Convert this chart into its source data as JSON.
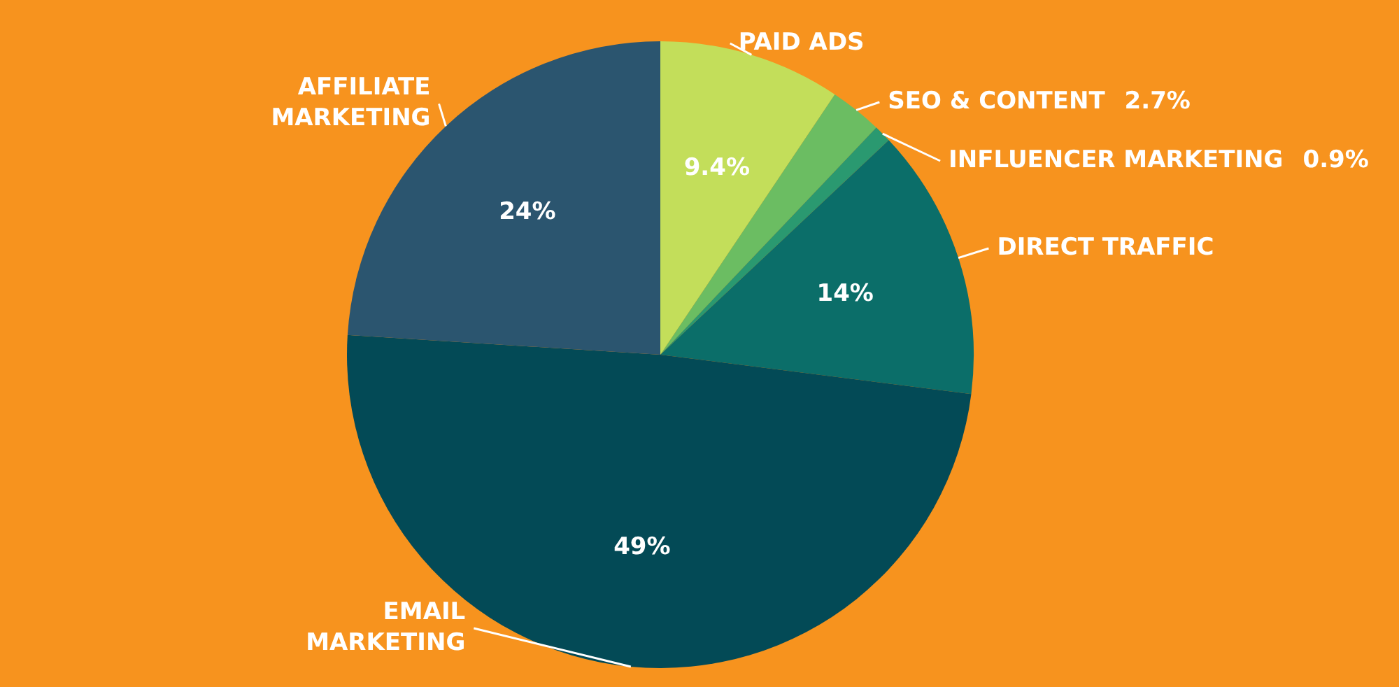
{
  "chart_data": {
    "type": "pie",
    "categories": [
      "PAID ADS",
      "SEO & CONTENT",
      "INFLUENCER MARKETING",
      "DIRECT TRAFFIC",
      "EMAIL MARKETING",
      "AFFILIATE MARKETING"
    ],
    "values": [
      9.4,
      2.7,
      0.9,
      14,
      49,
      24
    ],
    "value_labels": [
      "9.4%",
      "2.7%",
      "0.9%",
      "14%",
      "49%",
      "24%"
    ],
    "colors": [
      "#c3de5a",
      "#6bbd62",
      "#2a9970",
      "#0b6e69",
      "#034a56",
      "#2b556f"
    ],
    "legend": false
  }
}
